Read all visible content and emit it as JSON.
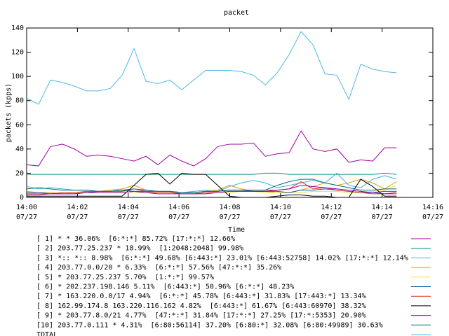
{
  "chart_data": {
    "type": "line",
    "title": "packet",
    "xlabel": "Time",
    "ylabel": "packets (kpps)",
    "x": [
      0,
      0.47,
      0.94,
      1.41,
      1.88,
      2.35,
      2.82,
      3.29,
      3.76,
      4.23,
      4.7,
      5.17,
      5.64,
      6.11,
      6.58,
      7.05,
      7.52,
      7.99,
      8.46,
      8.93,
      9.4,
      9.87,
      10.34,
      10.81,
      11.28,
      11.75,
      12.22,
      12.69,
      13.16,
      13.63,
      14.1,
      14.57
    ],
    "xlim": [
      0,
      16
    ],
    "xticks": [
      {
        "value": 0,
        "label": "14:00",
        "date": "07/27"
      },
      {
        "value": 2,
        "label": "14:02",
        "date": "07/27"
      },
      {
        "value": 4,
        "label": "14:04",
        "date": "07/27"
      },
      {
        "value": 6,
        "label": "14:06",
        "date": "07/27"
      },
      {
        "value": 8,
        "label": "14:08",
        "date": "07/27"
      },
      {
        "value": 10,
        "label": "14:10",
        "date": "07/27"
      },
      {
        "value": 12,
        "label": "14:12",
        "date": "07/27"
      },
      {
        "value": 14,
        "label": "14:14",
        "date": "07/27"
      },
      {
        "value": 16,
        "label": "14:16",
        "date": "07/27"
      }
    ],
    "ylim": [
      0,
      140
    ],
    "yticks": [
      0,
      20,
      40,
      60,
      80,
      100,
      120,
      140
    ],
    "series": [
      {
        "name": "[ 1] * * 36.06%  [6:*:*] 85.72% [17:*:*] 12.66%",
        "color": "#a000a0",
        "values": [
          27,
          26,
          42,
          44,
          40,
          34,
          35,
          34,
          32,
          30,
          34,
          27,
          35,
          30,
          26,
          32,
          42,
          44,
          44,
          45,
          34,
          36,
          37,
          55,
          40,
          38,
          40,
          29,
          31,
          30,
          41,
          41
        ]
      },
      {
        "name": "[ 2] 203.77.25.237 * 18.99%  [1:2048:2048] 99.98%",
        "color": "#009080",
        "values": [
          19,
          19,
          19,
          19,
          19,
          19,
          19,
          19,
          19,
          19,
          19,
          19,
          19,
          19,
          19,
          19,
          19,
          19,
          19,
          19,
          20,
          20,
          19,
          19,
          19,
          19,
          19,
          19,
          19,
          19,
          20,
          19
        ]
      },
      {
        "name": "[ 3] *:: *:: 8.98%  [6:*:*] 49.68% [6:443:*] 23.01% [6:443:52758] 14.02% [17:*:*] 12.14%",
        "color": "#40b0e0",
        "values": [
          9,
          7,
          8,
          7,
          6,
          6,
          5,
          5,
          6,
          5,
          5,
          4,
          4,
          4,
          5,
          6,
          5,
          9,
          12,
          14,
          12,
          8,
          10,
          12,
          14,
          12,
          20,
          10,
          8,
          15,
          18,
          15
        ]
      },
      {
        "name": "[ 4] 203.77.0.0/20 * 6.33%  [6:*:*] 57.56% [47:*:*] 35.26%",
        "color": "#e0a000",
        "values": [
          5,
          4,
          4,
          3,
          3,
          4,
          5,
          6,
          7,
          10,
          6,
          5,
          5,
          4,
          4,
          5,
          6,
          10,
          7,
          5,
          5,
          4,
          4,
          6,
          9,
          12,
          10,
          12,
          15,
          12,
          7,
          13
        ]
      },
      {
        "name": "[ 5] * 203.77.25.237 5.70%  [1:*:*] 99.57%",
        "color": "#f0e040",
        "values": [
          3,
          3,
          3,
          3,
          4,
          4,
          4,
          4,
          5,
          4,
          4,
          4,
          4,
          3,
          3,
          3,
          4,
          4,
          5,
          5,
          4,
          4,
          4,
          4,
          5,
          5,
          5,
          4,
          4,
          5,
          6,
          10
        ]
      },
      {
        "name": "[ 6] * 202.237.198.146 5.11%  [6:443:*] 50.96% [6:*:*] 48.23%",
        "color": "#0060b0",
        "values": [
          4,
          4,
          3,
          3,
          3,
          4,
          5,
          5,
          6,
          7,
          6,
          5,
          5,
          4,
          4,
          5,
          5,
          6,
          6,
          5,
          5,
          5,
          4,
          6,
          6,
          7,
          6,
          5,
          4,
          4,
          5,
          5
        ]
      },
      {
        "name": "[ 7] * 163.220.0.0/17 4.94%  [6:*:*] 45.78% [6:443:*] 31.83% [17:443:*] 13.34%",
        "color": "#e03020",
        "values": [
          3,
          3,
          3,
          4,
          4,
          5,
          5,
          5,
          5,
          7,
          5,
          4,
          4,
          3,
          3,
          4,
          5,
          6,
          6,
          6,
          6,
          6,
          7,
          13,
          7,
          8,
          6,
          5,
          4,
          3,
          3,
          4
        ]
      },
      {
        "name": "[ 8] 162.99.174.8 163.220.116.162 4.82%  [6:443:*] 61.67% [6:443:60970] 38.32%",
        "color": "#000000",
        "values": [
          1,
          1,
          1,
          1,
          1,
          1,
          1,
          1,
          1,
          10,
          19,
          20,
          11,
          20,
          19,
          19,
          10,
          1,
          0,
          0,
          0,
          1,
          2,
          2,
          1,
          1,
          0,
          0,
          15,
          9,
          1,
          1
        ]
      },
      {
        "name": "[ 9] * 203.77.8.0/21 4.77%  [47:*:*] 31.84% [17:*:*] 27.25% [17:*:5353] 20.90%",
        "color": "#9400b0",
        "values": [
          2,
          2,
          3,
          3,
          3,
          4,
          4,
          4,
          4,
          5,
          4,
          3,
          3,
          3,
          3,
          3,
          4,
          5,
          5,
          5,
          5,
          6,
          7,
          10,
          9,
          8,
          7,
          6,
          5,
          4,
          3,
          3
        ]
      },
      {
        "name": "[10] 203.77.0.111 * 4.31%  [6:80:56114] 37.20% [6:80:*] 32.08% [6:80:49989] 30.63%",
        "color": "#007080",
        "values": [
          7,
          8,
          7,
          6,
          6,
          6,
          5,
          5,
          6,
          5,
          5,
          5,
          5,
          4,
          4,
          5,
          5,
          6,
          6,
          6,
          6,
          10,
          13,
          15,
          15,
          12,
          10,
          8,
          6,
          6,
          7,
          7
        ]
      },
      {
        "name": "TOTAL",
        "color": "#50b8e0",
        "values": [
          82,
          77,
          97,
          95,
          92,
          88,
          88,
          90,
          101,
          123,
          96,
          94,
          97,
          89,
          97,
          105,
          105,
          105,
          104,
          101,
          93,
          103,
          118,
          137,
          126,
          102,
          101,
          81,
          110,
          106,
          104,
          103
        ]
      }
    ]
  }
}
